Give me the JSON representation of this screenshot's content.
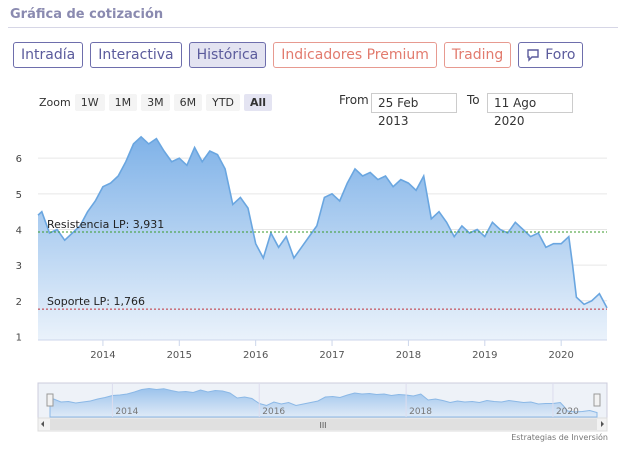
{
  "header": {
    "title": "Gráfica de cotización"
  },
  "tabs": [
    "Intradía",
    "Interactiva",
    "Histórica",
    "Indicadores Premium",
    "Trading",
    "Foro"
  ],
  "zoom": {
    "label": "Zoom",
    "buttons": [
      "1W",
      "1M",
      "3M",
      "6M",
      "YTD",
      "All"
    ]
  },
  "range": {
    "from_label": "From",
    "from": "25 Feb 2013",
    "to_label": "To",
    "to": "11 Ago 2020"
  },
  "credit": "Estrategias de Inversión",
  "chart_data": {
    "type": "area",
    "color": "#6aa6e0",
    "x": [
      2013.15,
      2013.2,
      2013.3,
      2013.4,
      2013.5,
      2013.6,
      2013.7,
      2013.8,
      2013.9,
      2014.0,
      2014.1,
      2014.2,
      2014.3,
      2014.4,
      2014.5,
      2014.6,
      2014.7,
      2014.8,
      2014.9,
      2015.0,
      2015.1,
      2015.2,
      2015.3,
      2015.4,
      2015.5,
      2015.6,
      2015.7,
      2015.8,
      2015.9,
      2016.0,
      2016.1,
      2016.2,
      2016.3,
      2016.4,
      2016.5,
      2016.6,
      2016.7,
      2016.8,
      2016.9,
      2017.0,
      2017.1,
      2017.2,
      2017.3,
      2017.4,
      2017.5,
      2017.6,
      2017.7,
      2017.8,
      2017.9,
      2018.0,
      2018.1,
      2018.2,
      2018.3,
      2018.4,
      2018.5,
      2018.6,
      2018.7,
      2018.8,
      2018.9,
      2019.0,
      2019.1,
      2019.2,
      2019.3,
      2019.4,
      2019.5,
      2019.6,
      2019.7,
      2019.8,
      2019.9,
      2020.0,
      2020.1,
      2020.15,
      2020.2,
      2020.3,
      2020.4,
      2020.5,
      2020.6
    ],
    "values": [
      4.4,
      4.5,
      3.9,
      4.0,
      3.7,
      3.9,
      4.1,
      4.5,
      4.8,
      5.2,
      5.3,
      5.5,
      5.9,
      6.4,
      6.6,
      6.4,
      6.55,
      6.2,
      5.9,
      6.0,
      5.8,
      6.3,
      5.9,
      6.2,
      6.1,
      5.7,
      4.7,
      4.9,
      4.6,
      3.6,
      3.2,
      3.9,
      3.5,
      3.8,
      3.2,
      3.5,
      3.8,
      4.1,
      4.9,
      5.0,
      4.8,
      5.3,
      5.7,
      5.5,
      5.6,
      5.4,
      5.5,
      5.2,
      5.4,
      5.3,
      5.1,
      5.5,
      4.3,
      4.5,
      4.2,
      3.8,
      4.1,
      3.9,
      4.0,
      3.8,
      4.2,
      4.0,
      3.9,
      4.2,
      4.0,
      3.8,
      3.9,
      3.5,
      3.6,
      3.6,
      3.8,
      3.0,
      2.1,
      1.9,
      2.0,
      2.2,
      1.8
    ],
    "xlim": [
      2013.15,
      2020.6
    ],
    "xticks": [
      2014,
      2015,
      2016,
      2017,
      2018,
      2019,
      2020
    ],
    "ylim": [
      0.9,
      6.65
    ],
    "yticks": [
      1,
      2,
      3,
      4,
      5,
      6
    ],
    "grid": true,
    "annotations": [
      {
        "label": "Resistencia LP: 3,931",
        "value": 3.931,
        "color": "#3a9a2a"
      },
      {
        "label": "Soporte LP: 1,766",
        "value": 1.766,
        "color": "#c0303a"
      }
    ],
    "navigator": {
      "xticks": [
        2014,
        2016,
        2018,
        2020
      ]
    }
  }
}
